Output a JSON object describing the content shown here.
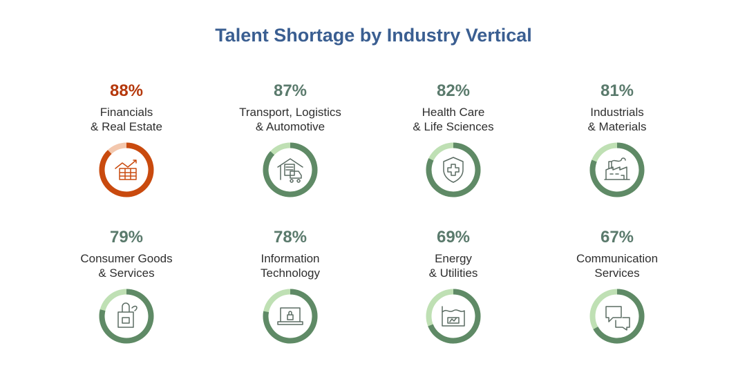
{
  "chart_data": {
    "type": "donut-grid",
    "title": "Talent Shortage by Industry Vertical",
    "categories": [
      "Financials\n& Real Estate",
      "Transport, Logistics\n& Automotive",
      "Health Care\n& Life Sciences",
      "Industrials\n& Materials",
      "Consumer Goods\n& Services",
      "Information\nTechnology",
      "Energy\n& Utilities",
      "Communication\nServices"
    ],
    "values": [
      88,
      87,
      82,
      81,
      79,
      78,
      69,
      67
    ],
    "value_labels": [
      "88%",
      "87%",
      "82%",
      "81%",
      "79%",
      "78%",
      "69%",
      "67%"
    ],
    "ylim": [
      0,
      100
    ],
    "colors": [
      "#c94a0e",
      "#5f8a66",
      "#5f8a66",
      "#5f8a66",
      "#5f8a66",
      "#5f8a66",
      "#5f8a66",
      "#5f8a66"
    ],
    "track_colors": [
      "#f3c7ad",
      "#bfe0b4",
      "#bfe0b4",
      "#bfe0b4",
      "#bfe0b4",
      "#bfe0b4",
      "#bfe0b4",
      "#bfe0b4"
    ],
    "label_colors": [
      "#b5380b",
      "#5a7a6c",
      "#5a7a6c",
      "#5a7a6c",
      "#5a7a6c",
      "#5a7a6c",
      "#5a7a6c",
      "#5a7a6c"
    ]
  }
}
